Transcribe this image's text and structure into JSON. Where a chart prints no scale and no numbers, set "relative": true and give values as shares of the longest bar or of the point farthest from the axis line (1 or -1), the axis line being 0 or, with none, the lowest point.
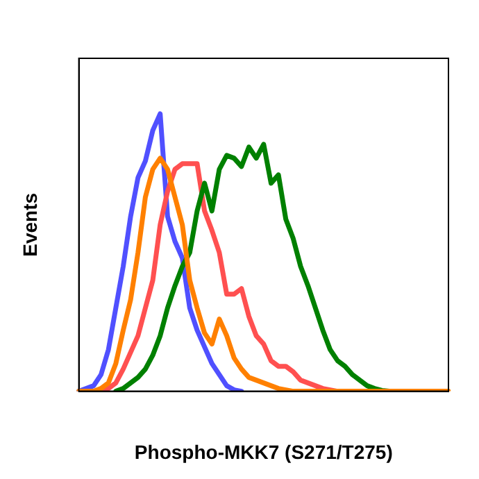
{
  "chart_data": {
    "type": "line",
    "xlabel": "Phospho-MKK7 (S271/T275)",
    "ylabel": "Events",
    "relative": true,
    "grid": false,
    "legend": false,
    "marker": "none",
    "line_style": "solid",
    "categories": [
      null,
      null,
      null,
      null,
      null,
      null,
      null,
      null,
      null,
      null,
      null,
      null,
      null,
      null,
      null,
      null,
      null,
      null,
      null,
      null,
      null,
      null,
      null,
      null,
      null,
      null,
      null,
      null,
      null,
      null,
      null,
      null,
      null,
      null,
      null,
      null,
      null,
      null,
      null,
      null,
      null,
      null,
      null,
      null,
      null,
      null,
      null,
      null,
      null,
      null,
      null
    ],
    "series": [
      {
        "color": "#ff8000",
        "values": [
          0,
          0,
          0,
          0.01,
          0.03,
          0.1,
          0.22,
          0.33,
          0.5,
          0.7,
          0.8,
          0.84,
          0.8,
          0.7,
          0.6,
          0.4,
          0.3,
          0.21,
          0.17,
          0.26,
          0.2,
          0.12,
          0.08,
          0.05,
          0.04,
          0.03,
          0.02,
          0.01,
          0.005,
          0,
          0,
          0,
          0,
          0,
          0,
          0,
          0,
          0,
          0,
          0,
          0,
          0,
          0,
          0,
          0,
          0,
          0,
          0,
          0,
          0,
          0
        ]
      },
      {
        "color": "#008000",
        "values": [
          null,
          null,
          null,
          null,
          null,
          0,
          0.01,
          0.03,
          0.05,
          0.08,
          0.13,
          0.2,
          0.3,
          0.38,
          0.45,
          0.5,
          0.65,
          0.75,
          0.65,
          0.8,
          0.85,
          0.84,
          0.81,
          0.88,
          0.84,
          0.89,
          0.75,
          0.78,
          0.62,
          0.55,
          0.45,
          0.38,
          0.3,
          0.22,
          0.15,
          0.11,
          0.09,
          0.06,
          0.04,
          0.02,
          0.01,
          0.003,
          0,
          null,
          null,
          null,
          null,
          null,
          null,
          null,
          null
        ]
      },
      {
        "color": "#ff5050",
        "values": [
          null,
          null,
          null,
          0,
          0.01,
          0.03,
          0.08,
          0.14,
          0.2,
          0.3,
          0.4,
          0.6,
          0.72,
          0.8,
          0.82,
          0.82,
          0.82,
          0.65,
          0.58,
          0.5,
          0.35,
          0.35,
          0.37,
          0.27,
          0.2,
          0.17,
          0.11,
          0.09,
          0.09,
          0.07,
          0.04,
          0.03,
          0.02,
          0.01,
          0.005,
          0,
          null,
          null,
          null,
          null,
          null,
          null,
          null,
          null,
          null,
          null,
          null,
          null,
          null,
          null,
          null
        ]
      },
      {
        "color": "#5050ff",
        "values": [
          0,
          0.01,
          0.02,
          0.06,
          0.15,
          0.3,
          0.45,
          0.63,
          0.77,
          0.83,
          0.94,
          1,
          0.63,
          0.54,
          0.48,
          0.3,
          0.22,
          0.16,
          0.1,
          0.06,
          0.02,
          0.005,
          0,
          null,
          null,
          null,
          null,
          null,
          null,
          null,
          null,
          null,
          null,
          null,
          null,
          null,
          null,
          null,
          null,
          null,
          null,
          null,
          null,
          null,
          null,
          null,
          null,
          null,
          null,
          null,
          null
        ]
      }
    ]
  }
}
